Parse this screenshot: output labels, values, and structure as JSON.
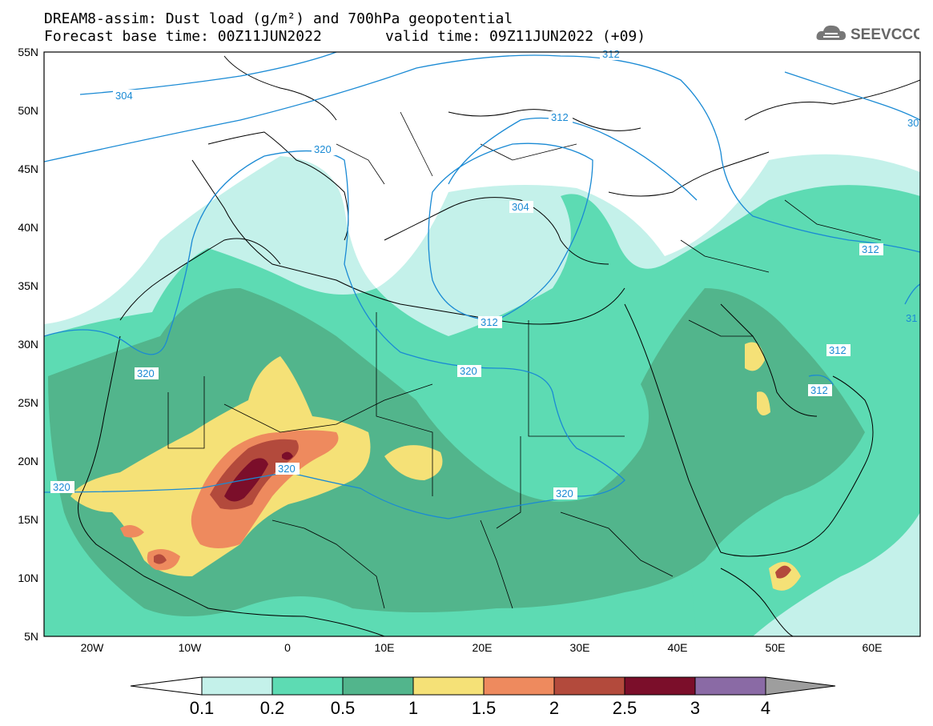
{
  "title": {
    "line1": "DREAM8-assim: Dust load (g/m²) and 700hPa geopotential",
    "line2": "Forecast base time: 00Z11JUN2022",
    "line2b": "valid time: 09Z11JUN2022 (+09)"
  },
  "logo": {
    "icon": "cloud-logo-icon",
    "text": "SEEVCCC"
  },
  "axes": {
    "lat_labels": [
      "55N",
      "50N",
      "45N",
      "40N",
      "35N",
      "30N",
      "25N",
      "20N",
      "15N",
      "10N",
      "5N"
    ],
    "lon_labels": [
      "20W",
      "10W",
      "0",
      "10E",
      "20E",
      "30E",
      "40E",
      "50E",
      "60E"
    ]
  },
  "contour_labels": [
    "304",
    "312",
    "320",
    "304",
    "312",
    "320",
    "320",
    "320",
    "320",
    "312",
    "312",
    "312",
    "31",
    "30"
  ],
  "colorbar": {
    "colors": [
      "#ffffff",
      "#c4f1ea",
      "#5ddbb3",
      "#52b58c",
      "#f5e177",
      "#ee8a5e",
      "#b34a3c",
      "#7b0e2a",
      "#8a6aa5",
      "#9e9e9e"
    ],
    "labels": [
      "0.1",
      "0.2",
      "0.5",
      "1",
      "1.5",
      "2",
      "2.5",
      "3",
      "4"
    ]
  },
  "colors": {
    "land_outline": "#000000",
    "contour": "#1a8ad4",
    "light_dust": "#c4f1ea",
    "mid_dust": "#5ddbb3",
    "dark_dust": "#52b58c"
  }
}
